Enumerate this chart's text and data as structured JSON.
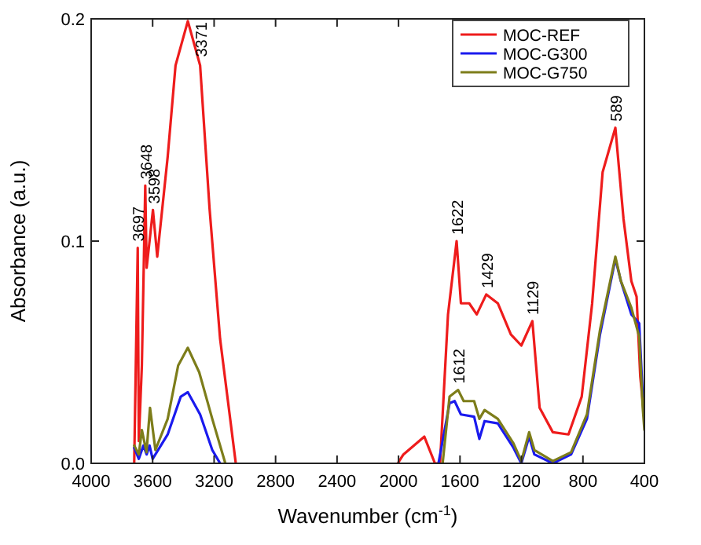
{
  "chart_data": {
    "type": "line",
    "xlabel": "Wavenumber (cm$^{-1}$)",
    "ylabel": "Absorbance (a.u.)",
    "xlim": [
      4000,
      400
    ],
    "ylim": [
      0,
      0.2
    ],
    "xticks": [
      4000,
      3600,
      3200,
      2800,
      2400,
      2000,
      1600,
      1200,
      800,
      400
    ],
    "yticks": [
      {
        "value": 0,
        "label": "0.0"
      },
      0.1,
      0.2
    ],
    "legend": "top right",
    "grid": false,
    "series": [
      {
        "name": "MOC-REF",
        "color": "#ee1c1c",
        "x": [
          3720,
          3697,
          3690,
          3670,
          3648,
          3639,
          3598,
          3570,
          3502,
          3451,
          3371,
          3291,
          3230,
          3161,
          3059,
          2500,
          2005,
          1968,
          1832,
          1763,
          1730,
          1678,
          1622,
          1594,
          1540,
          1491,
          1429,
          1354,
          1269,
          1201,
          1129,
          1082,
          996,
          894,
          808,
          740,
          672,
          589,
          536,
          485,
          451,
          427,
          400
        ],
        "values": [
          0,
          0.097,
          0.01,
          0.044,
          0.125,
          0.088,
          0.114,
          0.093,
          0.138,
          0.179,
          0.199,
          0.179,
          0.115,
          0.056,
          0,
          null,
          0,
          0.004,
          0.012,
          0,
          0,
          0.067,
          0.1,
          0.072,
          0.072,
          0.067,
          0.076,
          0.072,
          0.058,
          0.053,
          0.064,
          0.025,
          0.014,
          0.013,
          0.03,
          0.072,
          0.131,
          0.151,
          0.11,
          0.082,
          0.075,
          0.039,
          0.02
        ]
      },
      {
        "name": "MOC-G300",
        "color": "#1a1aee",
        "x": [
          3720,
          3690,
          3660,
          3639,
          3620,
          3600,
          3502,
          3417,
          3371,
          3291,
          3212,
          3161,
          2500,
          1740,
          1668,
          1635,
          1594,
          1508,
          1474,
          1440,
          1354,
          1252,
          1201,
          1150,
          1116,
          996,
          877,
          774,
          689,
          589,
          553,
          485,
          434,
          411
        ],
        "values": [
          0.007,
          0.002,
          0.008,
          0.004,
          0.008,
          0.002,
          0.013,
          0.03,
          0.032,
          0.022,
          0.006,
          0,
          null,
          0,
          0.027,
          0.028,
          0.022,
          0.021,
          0.011,
          0.019,
          0.018,
          0.007,
          0,
          0.012,
          0.004,
          0,
          0.004,
          0.02,
          0.058,
          0.092,
          0.082,
          0.067,
          0.063,
          0.03
        ]
      },
      {
        "name": "MOC-G750",
        "color": "#7d7d1a",
        "x": [
          3720,
          3690,
          3670,
          3640,
          3617,
          3582,
          3502,
          3434,
          3371,
          3297,
          3212,
          3127,
          2500,
          1713,
          1668,
          1612,
          1576,
          1508,
          1474,
          1440,
          1354,
          1252,
          1201,
          1150,
          1116,
          996,
          877,
          774,
          689,
          589,
          553,
          485,
          434,
          411,
          400
        ],
        "values": [
          0.008,
          0.004,
          0.015,
          0.005,
          0.025,
          0.006,
          0.02,
          0.044,
          0.052,
          0.041,
          0.02,
          0,
          null,
          0,
          0.03,
          0.033,
          0.028,
          0.028,
          0.02,
          0.024,
          0.02,
          0.009,
          0.001,
          0.014,
          0.006,
          0.001,
          0.005,
          0.022,
          0.06,
          0.093,
          0.082,
          0.07,
          0.057,
          0.025,
          0.015
        ]
      }
    ],
    "annotations": [
      {
        "text": "3697",
        "x": 3697,
        "y": 0.097
      },
      {
        "text": "3648",
        "x": 3648,
        "y": 0.125
      },
      {
        "text": "3598",
        "x": 3598,
        "y": 0.114
      },
      {
        "text": "3371",
        "x": 3371,
        "y": 0.199
      },
      {
        "text": "1622",
        "x": 1622,
        "y": 0.1
      },
      {
        "text": "1429",
        "x": 1429,
        "y": 0.076
      },
      {
        "text": "1129",
        "x": 1129,
        "y": 0.064
      },
      {
        "text": "1612",
        "x": 1612,
        "y": 0.033
      },
      {
        "text": "589",
        "x": 589,
        "y": 0.151
      }
    ]
  }
}
